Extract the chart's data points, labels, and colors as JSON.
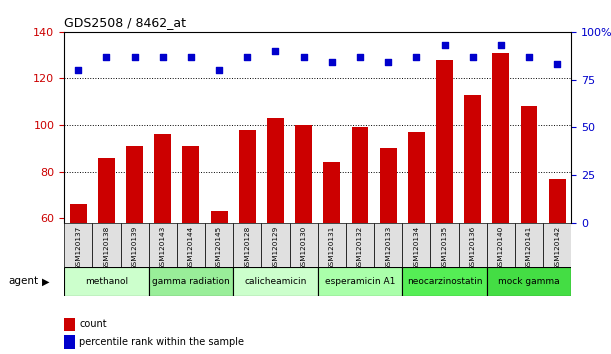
{
  "title": "GDS2508 / 8462_at",
  "samples": [
    "GSM120137",
    "GSM120138",
    "GSM120139",
    "GSM120143",
    "GSM120144",
    "GSM120145",
    "GSM120128",
    "GSM120129",
    "GSM120130",
    "GSM120131",
    "GSM120132",
    "GSM120133",
    "GSM120134",
    "GSM120135",
    "GSM120136",
    "GSM120140",
    "GSM120141",
    "GSM120142"
  ],
  "counts": [
    66,
    86,
    91,
    96,
    91,
    63,
    98,
    103,
    100,
    84,
    99,
    90,
    97,
    128,
    113,
    131,
    108,
    77
  ],
  "percentile_ranks": [
    80,
    87,
    87,
    87,
    87,
    80,
    87,
    90,
    87,
    84,
    87,
    84,
    87,
    93,
    87,
    93,
    87,
    83
  ],
  "groups": [
    {
      "label": "methanol",
      "indices": [
        0,
        1,
        2
      ],
      "color": "#ccffcc"
    },
    {
      "label": "gamma radiation",
      "indices": [
        3,
        4,
        5
      ],
      "color": "#99ee99"
    },
    {
      "label": "calicheamicin",
      "indices": [
        6,
        7,
        8
      ],
      "color": "#ccffcc"
    },
    {
      "label": "esperamicin A1",
      "indices": [
        9,
        10,
        11
      ],
      "color": "#aaffaa"
    },
    {
      "label": "neocarzinostatin",
      "indices": [
        12,
        13,
        14
      ],
      "color": "#55ee55"
    },
    {
      "label": "mock gamma",
      "indices": [
        15,
        16,
        17
      ],
      "color": "#44dd44"
    }
  ],
  "bar_color": "#cc0000",
  "dot_color": "#0000cc",
  "ylim_left": [
    58,
    140
  ],
  "ylim_right": [
    0,
    100
  ],
  "yticks_left": [
    60,
    80,
    100,
    120,
    140
  ],
  "yticks_right": [
    0,
    25,
    50,
    75,
    100
  ],
  "ylabel_left_color": "#cc0000",
  "ylabel_right_color": "#0000cc",
  "background_color": "#ffffff",
  "agent_label": "agent",
  "legend_count_label": "count",
  "legend_pct_label": "percentile rank within the sample",
  "gridlines": [
    80,
    100,
    120
  ]
}
